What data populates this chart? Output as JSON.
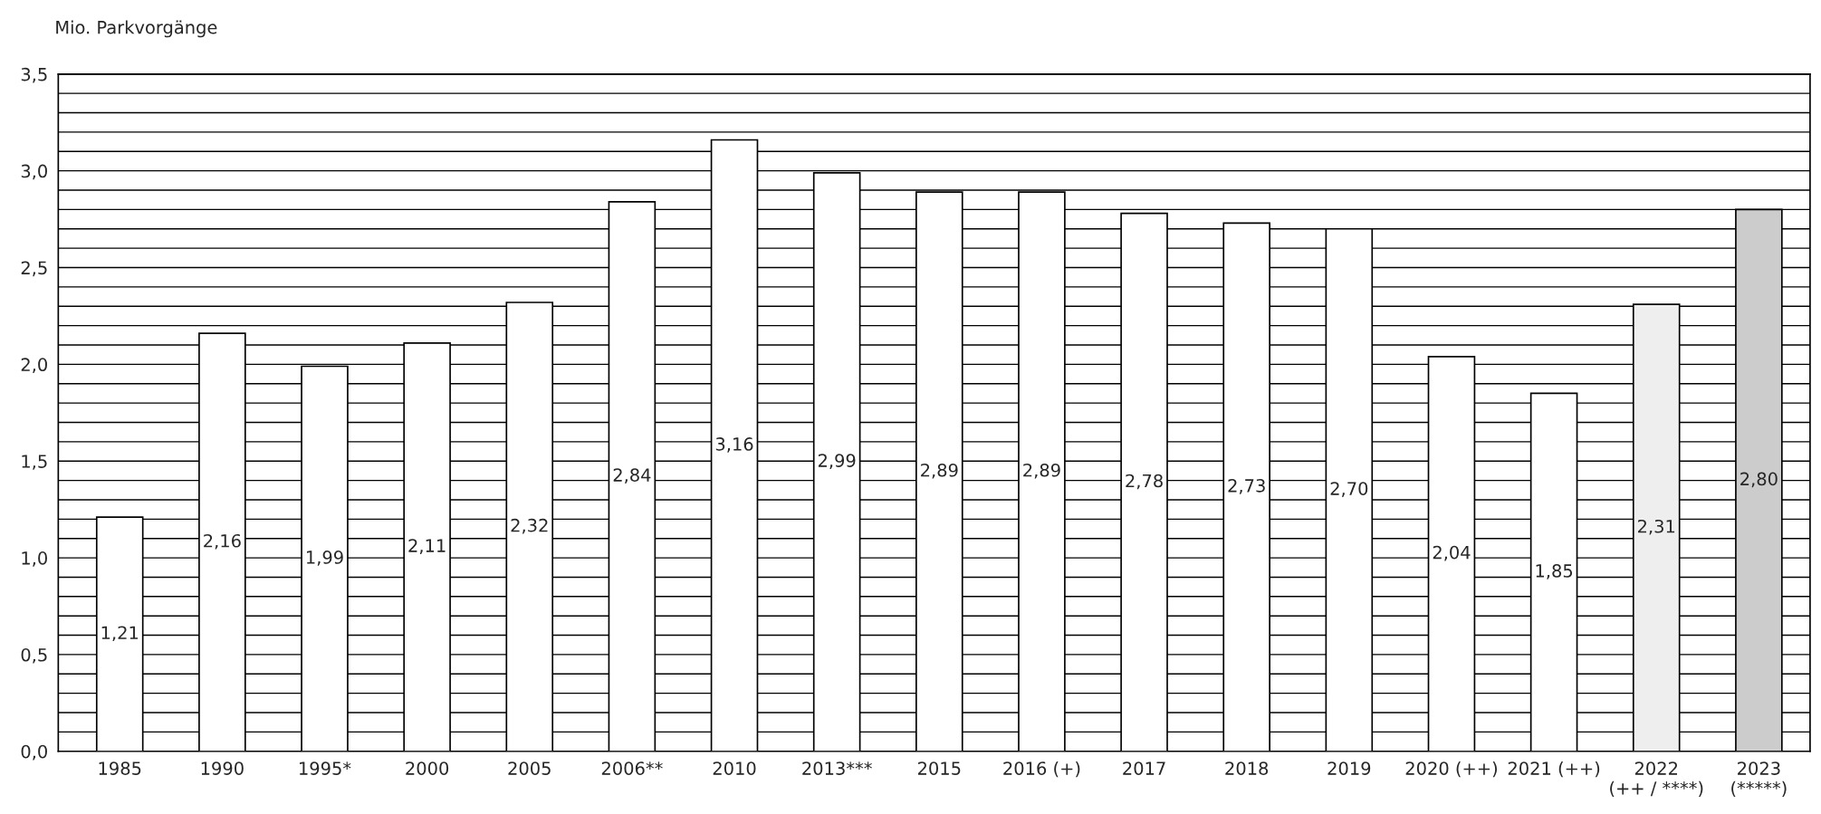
{
  "chart_data": {
    "type": "bar",
    "ylabel": "Mio. Parkvorgänge",
    "categories": [
      "1985",
      "1990",
      "1995*",
      "2000",
      "2005",
      "2006**",
      "2010",
      "2013***",
      "2015",
      "2016 (+)",
      "2017",
      "2018",
      "2019",
      "2020 (++)",
      "2021 (++)",
      "2022\n(++ / ****)",
      "2023\n(*****)"
    ],
    "values": [
      1.21,
      2.16,
      1.99,
      2.11,
      2.32,
      2.84,
      3.16,
      2.99,
      2.89,
      2.89,
      2.78,
      2.73,
      2.7,
      2.04,
      1.85,
      2.31,
      2.8
    ],
    "value_labels": [
      "1,21",
      "2,16",
      "1,99",
      "2,11",
      "2,32",
      "2,84",
      "3,16",
      "2,99",
      "2,89",
      "2,89",
      "2,78",
      "2,73",
      "2,70",
      "2,04",
      "1,85",
      "2,31",
      "2,80"
    ],
    "colors": [
      "#ffffff",
      "#ffffff",
      "#ffffff",
      "#ffffff",
      "#ffffff",
      "#ffffff",
      "#ffffff",
      "#ffffff",
      "#ffffff",
      "#ffffff",
      "#ffffff",
      "#ffffff",
      "#ffffff",
      "#ffffff",
      "#ffffff",
      "#eeeeee",
      "#cccccc"
    ],
    "ylim": [
      0,
      3.5
    ],
    "yticks": [
      {
        "value": 0,
        "label": "0,0"
      },
      {
        "value": 0.1,
        "label": null
      },
      {
        "value": 0.2,
        "label": null
      },
      {
        "value": 0.3,
        "label": null
      },
      {
        "value": 0.4,
        "label": null
      },
      {
        "value": 0.5,
        "label": "0,5"
      },
      {
        "value": 0.6,
        "label": null
      },
      {
        "value": 0.7,
        "label": null
      },
      {
        "value": 0.8,
        "label": null
      },
      {
        "value": 0.9,
        "label": null
      },
      {
        "value": 1.0,
        "label": "1,0"
      },
      {
        "value": 1.1,
        "label": null
      },
      {
        "value": 1.2,
        "label": null
      },
      {
        "value": 1.3,
        "label": null
      },
      {
        "value": 1.4,
        "label": null
      },
      {
        "value": 1.5,
        "label": "1,5"
      },
      {
        "value": 1.6,
        "label": null
      },
      {
        "value": 1.7,
        "label": null
      },
      {
        "value": 1.8,
        "label": null
      },
      {
        "value": 1.9,
        "label": null
      },
      {
        "value": 2.0,
        "label": "2,0"
      },
      {
        "value": 2.1,
        "label": null
      },
      {
        "value": 2.2,
        "label": null
      },
      {
        "value": 2.3,
        "label": null
      },
      {
        "value": 2.4,
        "label": null
      },
      {
        "value": 2.5,
        "label": "2,5"
      },
      {
        "value": 2.6,
        "label": null
      },
      {
        "value": 2.7,
        "label": null
      },
      {
        "value": 2.8,
        "label": null
      },
      {
        "value": 2.9,
        "label": null
      },
      {
        "value": 3.0,
        "label": "3,0"
      },
      {
        "value": 3.1,
        "label": null
      },
      {
        "value": 3.2,
        "label": null
      },
      {
        "value": 3.3,
        "label": null
      },
      {
        "value": 3.4,
        "label": null
      },
      {
        "value": 3.5,
        "label": "3,5"
      }
    ],
    "grid": "y",
    "legend": false
  }
}
